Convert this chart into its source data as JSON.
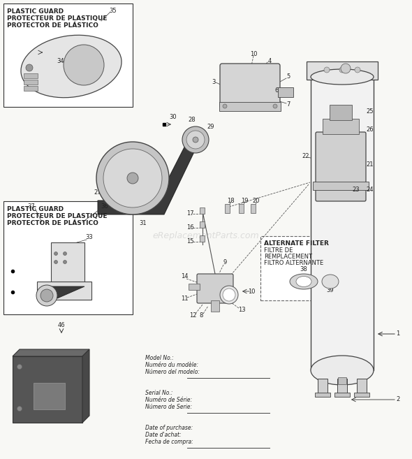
{
  "bg_color": "#f8f8f5",
  "line_color": "#333333",
  "watermark": "eReplacementParts.com",
  "box1_label": [
    "PLASTIC GUARD",
    "PROTECTEUR DE PLASTIQUE",
    "PROTECTOR DE PLÁSTICO"
  ],
  "box2_label": [
    "PLASTIC GUARD",
    "PROTECTEUR DE PLASTIQUE",
    "PROTECTOR DE PLÁSTICO"
  ],
  "alt_filter_label": [
    "ALTERNATE FILTER",
    "FILTRE DE",
    "REMPLACEMENT",
    "FILTRO ALTERNANTE"
  ],
  "info_labels": [
    [
      "Model No.:",
      "Numéro du modèle:",
      "Número del modelo:"
    ],
    [
      "Serial No.:",
      "Numéro de Série:",
      "Número de Serie:"
    ],
    [
      "Date of purchase:",
      "Date d'achat:",
      "Fecha de compra:"
    ]
  ]
}
